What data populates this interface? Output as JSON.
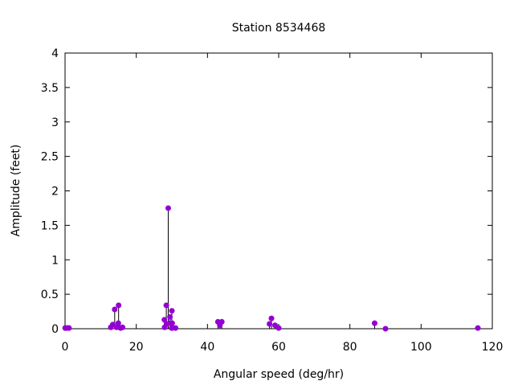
{
  "chart_data": {
    "type": "stem",
    "title": "Station 8534468",
    "xlabel": "Angular speed (deg/hr)",
    "ylabel": "Amplitude (feet)",
    "xlim": [
      0,
      120
    ],
    "ylim": [
      0,
      4
    ],
    "xticks": [
      0,
      20,
      40,
      60,
      80,
      100,
      120
    ],
    "yticks": [
      0,
      0.5,
      1,
      1.5,
      2,
      2.5,
      3,
      3.5,
      4
    ],
    "xtick_labels": [
      "0",
      "20",
      "40",
      "60",
      "80",
      "100",
      "120"
    ],
    "ytick_labels": [
      "0",
      "0.5",
      "1",
      "1.5",
      "2",
      "2.5",
      "3",
      "3.5",
      "4"
    ],
    "grid": false,
    "color": "#9400d3",
    "points": [
      {
        "x": 0.04,
        "y": 0.01
      },
      {
        "x": 0.08,
        "y": 0.01
      },
      {
        "x": 0.54,
        "y": 0.01
      },
      {
        "x": 1.02,
        "y": 0.01
      },
      {
        "x": 1.1,
        "y": 0.01
      },
      {
        "x": 12.85,
        "y": 0.02
      },
      {
        "x": 13.4,
        "y": 0.06
      },
      {
        "x": 13.94,
        "y": 0.28
      },
      {
        "x": 14.5,
        "y": 0.02
      },
      {
        "x": 14.96,
        "y": 0.08
      },
      {
        "x": 15.04,
        "y": 0.34
      },
      {
        "x": 15.59,
        "y": 0.01
      },
      {
        "x": 16.14,
        "y": 0.02
      },
      {
        "x": 27.9,
        "y": 0.13
      },
      {
        "x": 27.97,
        "y": 0.02
      },
      {
        "x": 28.44,
        "y": 0.34
      },
      {
        "x": 28.51,
        "y": 0.07
      },
      {
        "x": 28.98,
        "y": 1.75
      },
      {
        "x": 29.46,
        "y": 0.17
      },
      {
        "x": 29.53,
        "y": 0.08
      },
      {
        "x": 29.96,
        "y": 0.01
      },
      {
        "x": 30.0,
        "y": 0.26
      },
      {
        "x": 30.04,
        "y": 0.01
      },
      {
        "x": 30.08,
        "y": 0.08
      },
      {
        "x": 31.02,
        "y": 0.01
      },
      {
        "x": 42.93,
        "y": 0.1
      },
      {
        "x": 43.48,
        "y": 0.05
      },
      {
        "x": 44.03,
        "y": 0.1
      },
      {
        "x": 57.42,
        "y": 0.07
      },
      {
        "x": 57.97,
        "y": 0.15
      },
      {
        "x": 58.98,
        "y": 0.05
      },
      {
        "x": 60.0,
        "y": 0.01
      },
      {
        "x": 86.95,
        "y": 0.08
      },
      {
        "x": 90.0,
        "y": 0.0
      },
      {
        "x": 115.94,
        "y": 0.01
      }
    ]
  }
}
